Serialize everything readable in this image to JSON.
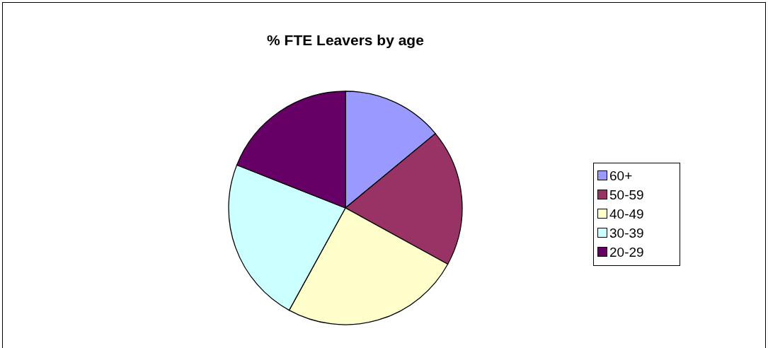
{
  "chart_data": {
    "type": "pie",
    "title": "% FTE Leavers by age",
    "categories": [
      "60+",
      "50-59",
      "40-49",
      "30-39",
      "20-29"
    ],
    "values": [
      14,
      19,
      25,
      23,
      19
    ],
    "colors": [
      "#9999ff",
      "#993366",
      "#ffffcc",
      "#ccffff",
      "#660066"
    ],
    "legend": "right"
  }
}
